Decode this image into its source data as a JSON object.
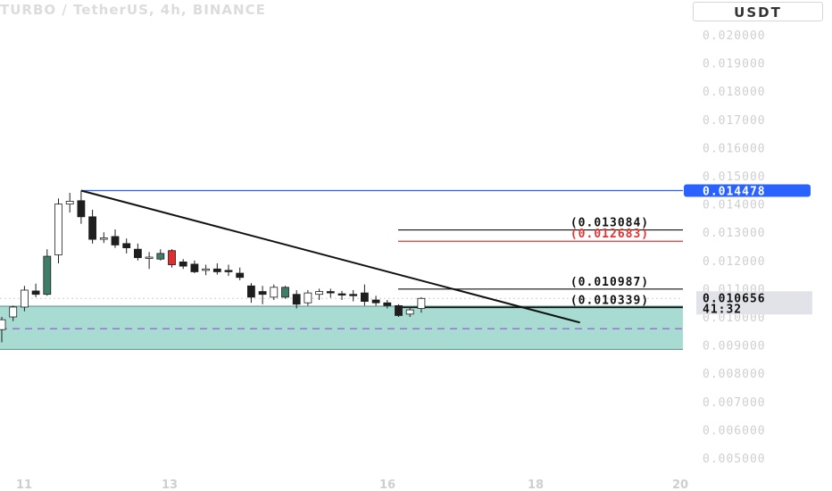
{
  "header": {
    "title": "TURBO / TetherUS, 4h, BINANCE",
    "currency": "USDT"
  },
  "chart_data": {
    "type": "candlestick",
    "y_ticks": [
      "0.020000",
      "0.019000",
      "0.018000",
      "0.017000",
      "0.016000",
      "0.015000",
      "0.014000",
      "0.013000",
      "0.012000",
      "0.011000",
      "0.010000",
      "0.009000",
      "0.008000",
      "0.007000",
      "0.006000",
      "0.005000"
    ],
    "ylim": [
      0.0047,
      0.0212
    ],
    "x_ticks": [
      "11",
      "13",
      "16",
      "18",
      "20"
    ],
    "candles": [
      {
        "o": 0.00955,
        "h": 0.01,
        "l": 0.0091,
        "c": 0.0099
      },
      {
        "o": 0.01,
        "h": 0.0104,
        "l": 0.00985,
        "c": 0.01035
      },
      {
        "o": 0.01035,
        "h": 0.0111,
        "l": 0.0102,
        "c": 0.01095
      },
      {
        "o": 0.01092,
        "h": 0.01118,
        "l": 0.0107,
        "c": 0.0108
      },
      {
        "o": 0.0108,
        "h": 0.0124,
        "l": 0.01075,
        "c": 0.01215
      },
      {
        "o": 0.0122,
        "h": 0.0142,
        "l": 0.0119,
        "c": 0.014
      },
      {
        "o": 0.014,
        "h": 0.0144,
        "l": 0.0137,
        "c": 0.0141
      },
      {
        "o": 0.01412,
        "h": 0.014478,
        "l": 0.0133,
        "c": 0.01355
      },
      {
        "o": 0.01355,
        "h": 0.0138,
        "l": 0.0126,
        "c": 0.01275
      },
      {
        "o": 0.01275,
        "h": 0.013,
        "l": 0.01262,
        "c": 0.0128
      },
      {
        "o": 0.01285,
        "h": 0.0131,
        "l": 0.01245,
        "c": 0.01255
      },
      {
        "o": 0.0126,
        "h": 0.01278,
        "l": 0.01225,
        "c": 0.01245
      },
      {
        "o": 0.0124,
        "h": 0.0126,
        "l": 0.012,
        "c": 0.0121
      },
      {
        "o": 0.0121,
        "h": 0.0123,
        "l": 0.0117,
        "c": 0.01212
      },
      {
        "o": 0.01205,
        "h": 0.0124,
        "l": 0.012,
        "c": 0.01225
      },
      {
        "o": 0.01235,
        "h": 0.0124,
        "l": 0.01175,
        "c": 0.01185
      },
      {
        "o": 0.01195,
        "h": 0.01205,
        "l": 0.0117,
        "c": 0.0118
      },
      {
        "o": 0.01187,
        "h": 0.012,
        "l": 0.01155,
        "c": 0.0116
      },
      {
        "o": 0.01165,
        "h": 0.01185,
        "l": 0.01148,
        "c": 0.0117
      },
      {
        "o": 0.0117,
        "h": 0.0119,
        "l": 0.0115,
        "c": 0.0116
      },
      {
        "o": 0.01165,
        "h": 0.01185,
        "l": 0.01145,
        "c": 0.0116
      },
      {
        "o": 0.01155,
        "h": 0.01175,
        "l": 0.0113,
        "c": 0.0114
      },
      {
        "o": 0.0111,
        "h": 0.0112,
        "l": 0.0105,
        "c": 0.0107
      },
      {
        "o": 0.0109,
        "h": 0.0111,
        "l": 0.01045,
        "c": 0.0108
      },
      {
        "o": 0.0107,
        "h": 0.01115,
        "l": 0.0106,
        "c": 0.01105
      },
      {
        "o": 0.01105,
        "h": 0.0111,
        "l": 0.01065,
        "c": 0.0107
      },
      {
        "o": 0.0108,
        "h": 0.01095,
        "l": 0.0103,
        "c": 0.01045
      },
      {
        "o": 0.0105,
        "h": 0.01095,
        "l": 0.0104,
        "c": 0.01085
      },
      {
        "o": 0.0108,
        "h": 0.011,
        "l": 0.0106,
        "c": 0.0109
      },
      {
        "o": 0.0109,
        "h": 0.011,
        "l": 0.01068,
        "c": 0.01085
      },
      {
        "o": 0.01082,
        "h": 0.01092,
        "l": 0.0106,
        "c": 0.0108
      },
      {
        "o": 0.0108,
        "h": 0.01095,
        "l": 0.01055,
        "c": 0.01075
      },
      {
        "o": 0.01085,
        "h": 0.01115,
        "l": 0.0104,
        "c": 0.01055
      },
      {
        "o": 0.0106,
        "h": 0.01075,
        "l": 0.0104,
        "c": 0.0105
      },
      {
        "o": 0.0105,
        "h": 0.0106,
        "l": 0.0103,
        "c": 0.0104
      },
      {
        "o": 0.0104,
        "h": 0.01045,
        "l": 0.01,
        "c": 0.01005
      },
      {
        "o": 0.0101,
        "h": 0.01035,
        "l": 0.01,
        "c": 0.01025
      },
      {
        "o": 0.0103,
        "h": 0.0107,
        "l": 0.01015,
        "c": 0.010656
      }
    ],
    "candle_colors": {
      "up": "#ffffff",
      "down": "#1e1e1e",
      "accent_up": "#3e7d6a",
      "accent_down": "#e02f2f",
      "wick": "#1e1e1e"
    },
    "accent_candles": {
      "4": "up",
      "14": "up",
      "15": "down",
      "25": "up"
    },
    "high_line": {
      "price": 0.014478,
      "label": "0.014478",
      "color": "#2962ff"
    },
    "current_price": {
      "label": "0.010656",
      "countdown": "41:32"
    },
    "levels": [
      {
        "price": 0.013084,
        "label": "(0.013084)",
        "color": "#111111"
      },
      {
        "price": 0.012683,
        "label": "(0.012683)",
        "color": "#e23333"
      },
      {
        "price": 0.010987,
        "label": "(0.010987)",
        "color": "#111111"
      },
      {
        "price": 0.010339,
        "label": "(0.010339)",
        "color": "#111111"
      }
    ],
    "zone": {
      "top": 0.01038,
      "bottom": 0.00885,
      "color": "#a8dbd2"
    },
    "dashed_level": {
      "price": 0.009579,
      "color": "#9a72d6"
    },
    "trendline": {
      "from": {
        "candle": 7,
        "price": 0.014478
      },
      "to": {
        "candle": 51,
        "price": 0.0098
      }
    }
  }
}
